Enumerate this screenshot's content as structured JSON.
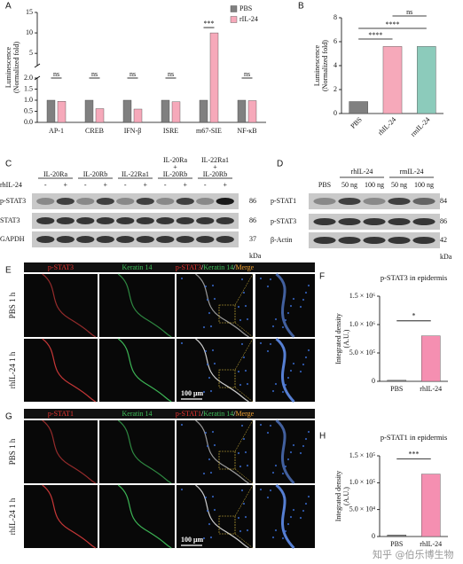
{
  "chart_data": [
    {
      "type": "bar",
      "panel": "A",
      "ylabel": [
        "Luminescence",
        "(Normalized fold)"
      ],
      "categories": [
        "AP-1",
        "CREB",
        "IFN-β",
        "ISRE",
        "m67-SIE",
        "NF-κB"
      ],
      "series": [
        {
          "name": "PBS",
          "color": "#808080",
          "values": [
            1,
            1,
            1,
            1,
            1,
            1
          ]
        },
        {
          "name": "rIL-24",
          "color": "#f6a9ba",
          "values": [
            0.95,
            0.62,
            0.6,
            0.93,
            10,
            0.98
          ]
        }
      ],
      "significance": [
        "ns",
        "ns",
        "ns",
        "ns",
        "***",
        "ns"
      ],
      "ylim": [
        0,
        15
      ],
      "y_break": 2,
      "yticks": [
        {
          "value": 0,
          "label": "0.0"
        },
        {
          "value": 0.5,
          "label": "0.5"
        },
        {
          "value": 1,
          "label": "1.0"
        },
        {
          "value": 1.5,
          "label": "1.5"
        },
        {
          "value": 2,
          "label": "2.0"
        },
        5,
        10,
        15
      ],
      "legend": "top-right"
    },
    {
      "type": "bar",
      "panel": "B",
      "ylabel": [
        "Luminescence",
        "(Normalized fold)"
      ],
      "categories": [
        "PBS",
        "rhIL-24",
        "rmIL-24"
      ],
      "values": [
        1,
        5.6,
        5.6
      ],
      "colors": [
        "#808080",
        "#f6a9ba",
        "#8ccbbb"
      ],
      "significance": [
        "****",
        "****",
        "ns"
      ],
      "ylim": [
        0,
        8
      ],
      "yticks": [
        0,
        2,
        4,
        6,
        8
      ]
    },
    {
      "type": "bar",
      "panel": "F",
      "title": "p-STAT3 in epidermis",
      "ylabel": [
        "Integrated density",
        "(A.U.)"
      ],
      "categories": [
        "PBS",
        "rhIL-24"
      ],
      "values": [
        20000,
        800000
      ],
      "colors": [
        "#808080",
        "#f58fb1"
      ],
      "significance": [
        "*"
      ],
      "ylim": [
        0,
        1500000
      ],
      "yticks": [
        0,
        {
          "value": 500000,
          "label": "5.0 × 10⁵"
        },
        {
          "value": 1000000,
          "label": "1.0 × 10⁶"
        },
        {
          "value": 1500000,
          "label": "1.5 × 10⁶"
        }
      ]
    },
    {
      "type": "bar",
      "panel": "H",
      "title": "p-STAT1 in epidermis",
      "ylabel": [
        "Integrated density",
        "(A.U.)"
      ],
      "categories": [
        "PBS",
        "rhIL-24"
      ],
      "values": [
        3000,
        116000
      ],
      "colors": [
        "#808080",
        "#f58fb1"
      ],
      "significance": [
        "***"
      ],
      "ylim": [
        0,
        150000
      ],
      "yticks": [
        0,
        {
          "value": 50000,
          "label": "5.0 × 10⁴"
        },
        {
          "value": 100000,
          "label": "1.0 × 10⁵"
        },
        {
          "value": 150000,
          "label": "1.5 × 10⁵"
        }
      ]
    }
  ],
  "blots": [
    {
      "panel": "C",
      "groups": [
        [
          "IL-20Ra"
        ],
        [
          "IL-20Rb"
        ],
        [
          "IL-22Ra1"
        ],
        [
          "IL-20Ra",
          "+",
          "IL-20Rb"
        ],
        [
          "IL-22Ra1",
          "+",
          "IL-20Rb"
        ]
      ],
      "treatment": "rhIL-24",
      "lane_signs": [
        "-",
        "+",
        "-",
        "+",
        "-",
        "+",
        "-",
        "+",
        "-",
        "+"
      ],
      "rows": [
        {
          "label": "p-STAT3",
          "kda": "86"
        },
        {
          "label": "STAT3",
          "kda": "86"
        },
        {
          "label": "GAPDH",
          "kda": "37"
        }
      ],
      "unit": "kDa"
    },
    {
      "panel": "D",
      "groups": [
        [
          "rhIL-24"
        ],
        [
          "rmIL-24"
        ]
      ],
      "lanes": [
        "PBS",
        "50 ng",
        "100 ng",
        "50 ng",
        "100 ng"
      ],
      "rows": [
        {
          "label": "p-STAT1",
          "kda": "84"
        },
        {
          "label": "p-STAT3",
          "kda": "86"
        },
        {
          "label": "β-Actin",
          "kda": "42"
        }
      ],
      "unit": "kDa"
    }
  ],
  "images": [
    {
      "panel": "E",
      "headers": [
        [
          {
            "text": "p-STAT3",
            "color": "#e8322f"
          }
        ],
        [
          {
            "text": "Keratin 14",
            "color": "#3fbf5a"
          }
        ],
        [
          {
            "text": "p-STAT3",
            "color": "#e8322f"
          },
          {
            "text": "/",
            "color": "#ffffff"
          },
          {
            "text": "Keratin 14",
            "color": "#3fbf5a"
          },
          {
            "text": "/",
            "color": "#ffffff"
          },
          {
            "text": "Merge",
            "color": "#f0a030"
          }
        ]
      ],
      "rows": [
        "PBS 1 h",
        "rhIL-24 1 h"
      ],
      "scale_bar": "100 μm"
    },
    {
      "panel": "G",
      "headers": [
        [
          {
            "text": "p-STAT1",
            "color": "#e8322f"
          }
        ],
        [
          {
            "text": "Keratin 14",
            "color": "#3fbf5a"
          }
        ],
        [
          {
            "text": "p-STAT1",
            "color": "#e8322f"
          },
          {
            "text": "/",
            "color": "#ffffff"
          },
          {
            "text": "Keratin 14",
            "color": "#3fbf5a"
          },
          {
            "text": "/",
            "color": "#ffffff"
          },
          {
            "text": "Merge",
            "color": "#f0a030"
          }
        ]
      ],
      "rows": [
        "PBS 1 h",
        "rhIL-24 1 h"
      ],
      "scale_bar": "100 μm"
    }
  ],
  "watermark": "知乎 @伯乐博生物"
}
